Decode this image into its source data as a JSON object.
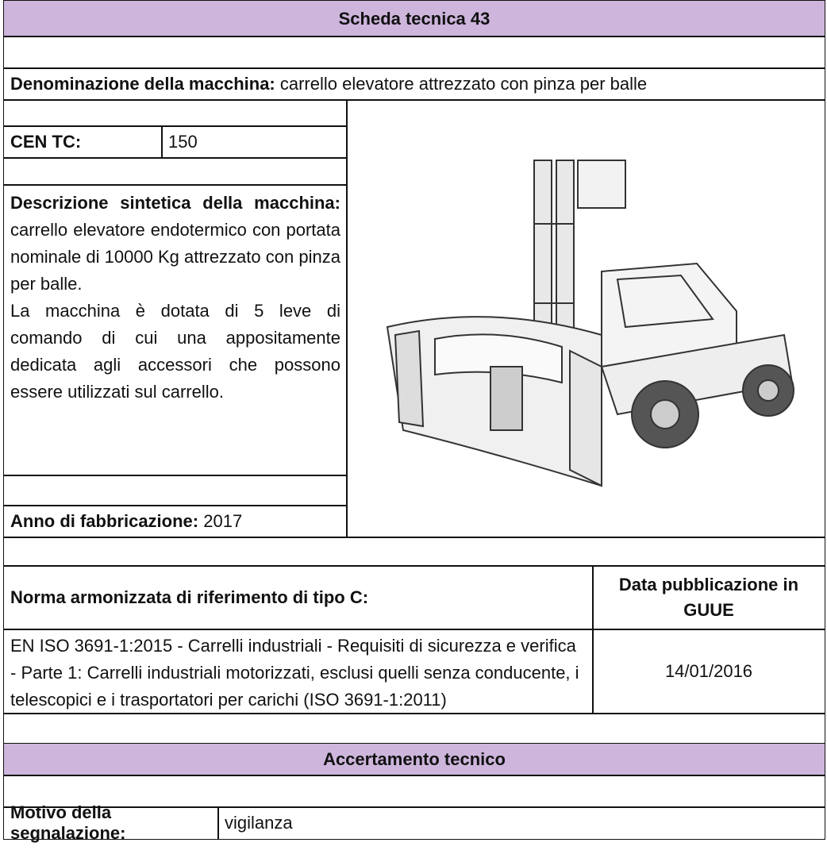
{
  "header": {
    "title": "Scheda tecnica 43"
  },
  "machine": {
    "label": "Denominazione della macchina:",
    "value": "carrello elevatore attrezzato con pinza per balle"
  },
  "cen_tc": {
    "label": "CEN TC:",
    "value": "150"
  },
  "description": {
    "label": "Descrizione sintetica della macchina:",
    "text": "carrello elevatore endotermico con portata nominale di 10000 Kg attrezzato con pinza per balle.",
    "text2": "La macchina è dotata di 5 leve di comando di cui una appositamente dedicata agli accessori che possono essere utilizzati sul carrello."
  },
  "year": {
    "label": "Anno di fabbricazione:",
    "value": "2017"
  },
  "standard": {
    "header": "Norma armonizzata di riferimento di tipo C:",
    "date_header": "Data pubblicazione in GUUE",
    "text": "EN ISO 3691-1:2015 - Carrelli industriali - Requisiti di sicurezza e verifica - Parte 1: Carrelli industriali motorizzati, esclusi quelli senza conducente, i telescopici e i trasportatori per carichi (ISO 3691-1:2011)",
    "date": "14/01/2016"
  },
  "assessment": {
    "title": "Accertamento tecnico",
    "reason_label": "Motivo della segnalazione:",
    "reason": "vigilanza"
  }
}
